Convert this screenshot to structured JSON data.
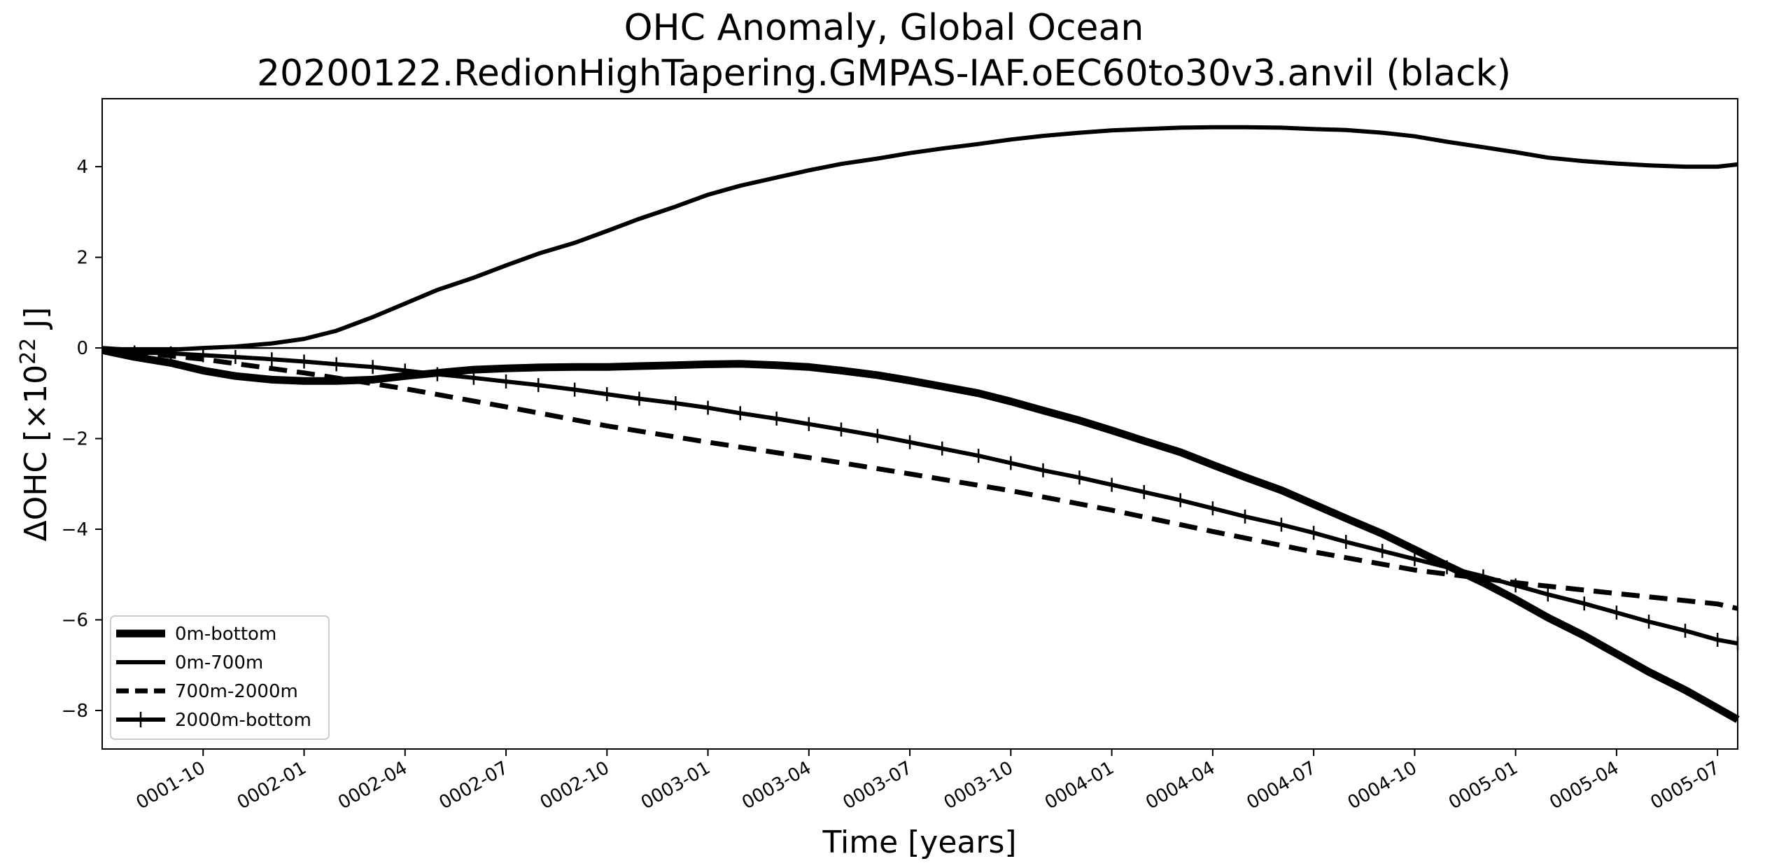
{
  "chart_data": {
    "type": "line",
    "title": "OHC Anomaly, Global Ocean",
    "subtitle": "20200122.RedionHighTapering.GMPAS-IAF.oEC60to30v3.anvil (black)",
    "xlabel": "Time [years]",
    "ylabel_prefix": "ΔOHC [×10",
    "ylabel_exp": "22",
    "ylabel_suffix": " J]",
    "xlim": [
      0.5,
      4.55
    ],
    "ylim": [
      -8.85,
      5.5
    ],
    "x_ticks": [
      {
        "value": 0.75,
        "label": "0001-10"
      },
      {
        "value": 1.0,
        "label": "0002-01"
      },
      {
        "value": 1.25,
        "label": "0002-04"
      },
      {
        "value": 1.5,
        "label": "0002-07"
      },
      {
        "value": 1.75,
        "label": "0002-10"
      },
      {
        "value": 2.0,
        "label": "0003-01"
      },
      {
        "value": 2.25,
        "label": "0003-04"
      },
      {
        "value": 2.5,
        "label": "0003-07"
      },
      {
        "value": 2.75,
        "label": "0003-10"
      },
      {
        "value": 3.0,
        "label": "0004-01"
      },
      {
        "value": 3.25,
        "label": "0004-04"
      },
      {
        "value": 3.5,
        "label": "0004-07"
      },
      {
        "value": 3.75,
        "label": "0004-10"
      },
      {
        "value": 4.0,
        "label": "0005-01"
      },
      {
        "value": 4.25,
        "label": "0005-04"
      },
      {
        "value": 4.5,
        "label": "0005-07"
      }
    ],
    "y_ticks": [
      {
        "value": 4,
        "label": "4"
      },
      {
        "value": 2,
        "label": "2"
      },
      {
        "value": 0,
        "label": "0"
      },
      {
        "value": -2,
        "label": "−2"
      },
      {
        "value": -4,
        "label": "−4"
      },
      {
        "value": -6,
        "label": "−6"
      },
      {
        "value": -8,
        "label": "−8"
      }
    ],
    "zero_line": 0,
    "legend_position": "lower-left",
    "series": [
      {
        "name": "0m-bottom",
        "style": "thick",
        "x": [
          0.5,
          0.58,
          0.67,
          0.75,
          0.83,
          0.92,
          1.0,
          1.08,
          1.17,
          1.25,
          1.33,
          1.42,
          1.5,
          1.58,
          1.67,
          1.75,
          1.83,
          1.92,
          2.0,
          2.08,
          2.17,
          2.25,
          2.33,
          2.42,
          2.5,
          2.58,
          2.67,
          2.75,
          2.83,
          2.92,
          3.0,
          3.08,
          3.17,
          3.25,
          3.33,
          3.42,
          3.5,
          3.58,
          3.67,
          3.75,
          3.83,
          3.92,
          4.0,
          4.08,
          4.17,
          4.25,
          4.33,
          4.42,
          4.5,
          4.55
        ],
        "values": [
          -0.05,
          -0.2,
          -0.33,
          -0.5,
          -0.62,
          -0.7,
          -0.73,
          -0.73,
          -0.7,
          -0.62,
          -0.55,
          -0.48,
          -0.45,
          -0.43,
          -0.42,
          -0.42,
          -0.4,
          -0.38,
          -0.36,
          -0.35,
          -0.38,
          -0.42,
          -0.5,
          -0.6,
          -0.72,
          -0.85,
          -1.0,
          -1.18,
          -1.38,
          -1.6,
          -1.82,
          -2.05,
          -2.3,
          -2.58,
          -2.85,
          -3.14,
          -3.45,
          -3.76,
          -4.1,
          -4.45,
          -4.8,
          -5.18,
          -5.55,
          -5.95,
          -6.35,
          -6.75,
          -7.15,
          -7.55,
          -7.95,
          -8.2
        ]
      },
      {
        "name": "0m-700m",
        "style": "solid",
        "x": [
          0.5,
          0.58,
          0.67,
          0.75,
          0.83,
          0.92,
          1.0,
          1.08,
          1.17,
          1.25,
          1.33,
          1.42,
          1.5,
          1.58,
          1.67,
          1.75,
          1.83,
          1.92,
          2.0,
          2.08,
          2.17,
          2.25,
          2.33,
          2.42,
          2.5,
          2.58,
          2.67,
          2.75,
          2.83,
          2.92,
          3.0,
          3.08,
          3.17,
          3.25,
          3.33,
          3.42,
          3.5,
          3.58,
          3.67,
          3.75,
          3.83,
          3.92,
          4.0,
          4.08,
          4.17,
          4.25,
          4.33,
          4.42,
          4.5,
          4.55
        ],
        "values": [
          0.0,
          -0.05,
          -0.04,
          0.0,
          0.03,
          0.1,
          0.2,
          0.38,
          0.68,
          0.98,
          1.28,
          1.55,
          1.82,
          2.08,
          2.32,
          2.58,
          2.85,
          3.12,
          3.38,
          3.58,
          3.76,
          3.92,
          4.06,
          4.18,
          4.3,
          4.4,
          4.5,
          4.6,
          4.68,
          4.75,
          4.8,
          4.83,
          4.86,
          4.87,
          4.87,
          4.86,
          4.83,
          4.81,
          4.75,
          4.67,
          4.55,
          4.43,
          4.32,
          4.2,
          4.12,
          4.07,
          4.03,
          4.0,
          4.0,
          4.05
        ]
      },
      {
        "name": "700m-2000m",
        "style": "dashed",
        "x": [
          0.5,
          0.75,
          1.0,
          1.25,
          1.5,
          1.75,
          2.0,
          2.25,
          2.5,
          2.75,
          3.0,
          3.25,
          3.5,
          3.75,
          4.0,
          4.25,
          4.5,
          4.55
        ],
        "values": [
          -0.02,
          -0.25,
          -0.55,
          -0.9,
          -1.3,
          -1.72,
          -2.08,
          -2.42,
          -2.78,
          -3.15,
          -3.58,
          -4.05,
          -4.5,
          -4.9,
          -5.18,
          -5.42,
          -5.65,
          -5.75
        ]
      },
      {
        "name": "2000m-bottom",
        "style": "plus-markers",
        "x": [
          0.5,
          0.58,
          0.67,
          0.75,
          0.83,
          0.92,
          1.0,
          1.08,
          1.17,
          1.25,
          1.33,
          1.42,
          1.5,
          1.58,
          1.67,
          1.75,
          1.83,
          1.92,
          2.0,
          2.08,
          2.17,
          2.25,
          2.33,
          2.42,
          2.5,
          2.58,
          2.67,
          2.75,
          2.83,
          2.92,
          3.0,
          3.08,
          3.17,
          3.25,
          3.33,
          3.42,
          3.5,
          3.58,
          3.67,
          3.75,
          3.83,
          3.92,
          4.0,
          4.08,
          4.17,
          4.25,
          4.33,
          4.42,
          4.5,
          4.55
        ],
        "values": [
          -0.05,
          -0.1,
          -0.12,
          -0.16,
          -0.2,
          -0.25,
          -0.3,
          -0.36,
          -0.42,
          -0.5,
          -0.58,
          -0.66,
          -0.74,
          -0.82,
          -0.92,
          -1.02,
          -1.12,
          -1.22,
          -1.32,
          -1.44,
          -1.56,
          -1.68,
          -1.8,
          -1.94,
          -2.08,
          -2.22,
          -2.38,
          -2.54,
          -2.7,
          -2.86,
          -3.02,
          -3.18,
          -3.36,
          -3.54,
          -3.72,
          -3.9,
          -4.08,
          -4.28,
          -4.48,
          -4.66,
          -4.84,
          -5.04,
          -5.24,
          -5.44,
          -5.64,
          -5.84,
          -6.04,
          -6.24,
          -6.44,
          -6.52
        ]
      }
    ]
  }
}
